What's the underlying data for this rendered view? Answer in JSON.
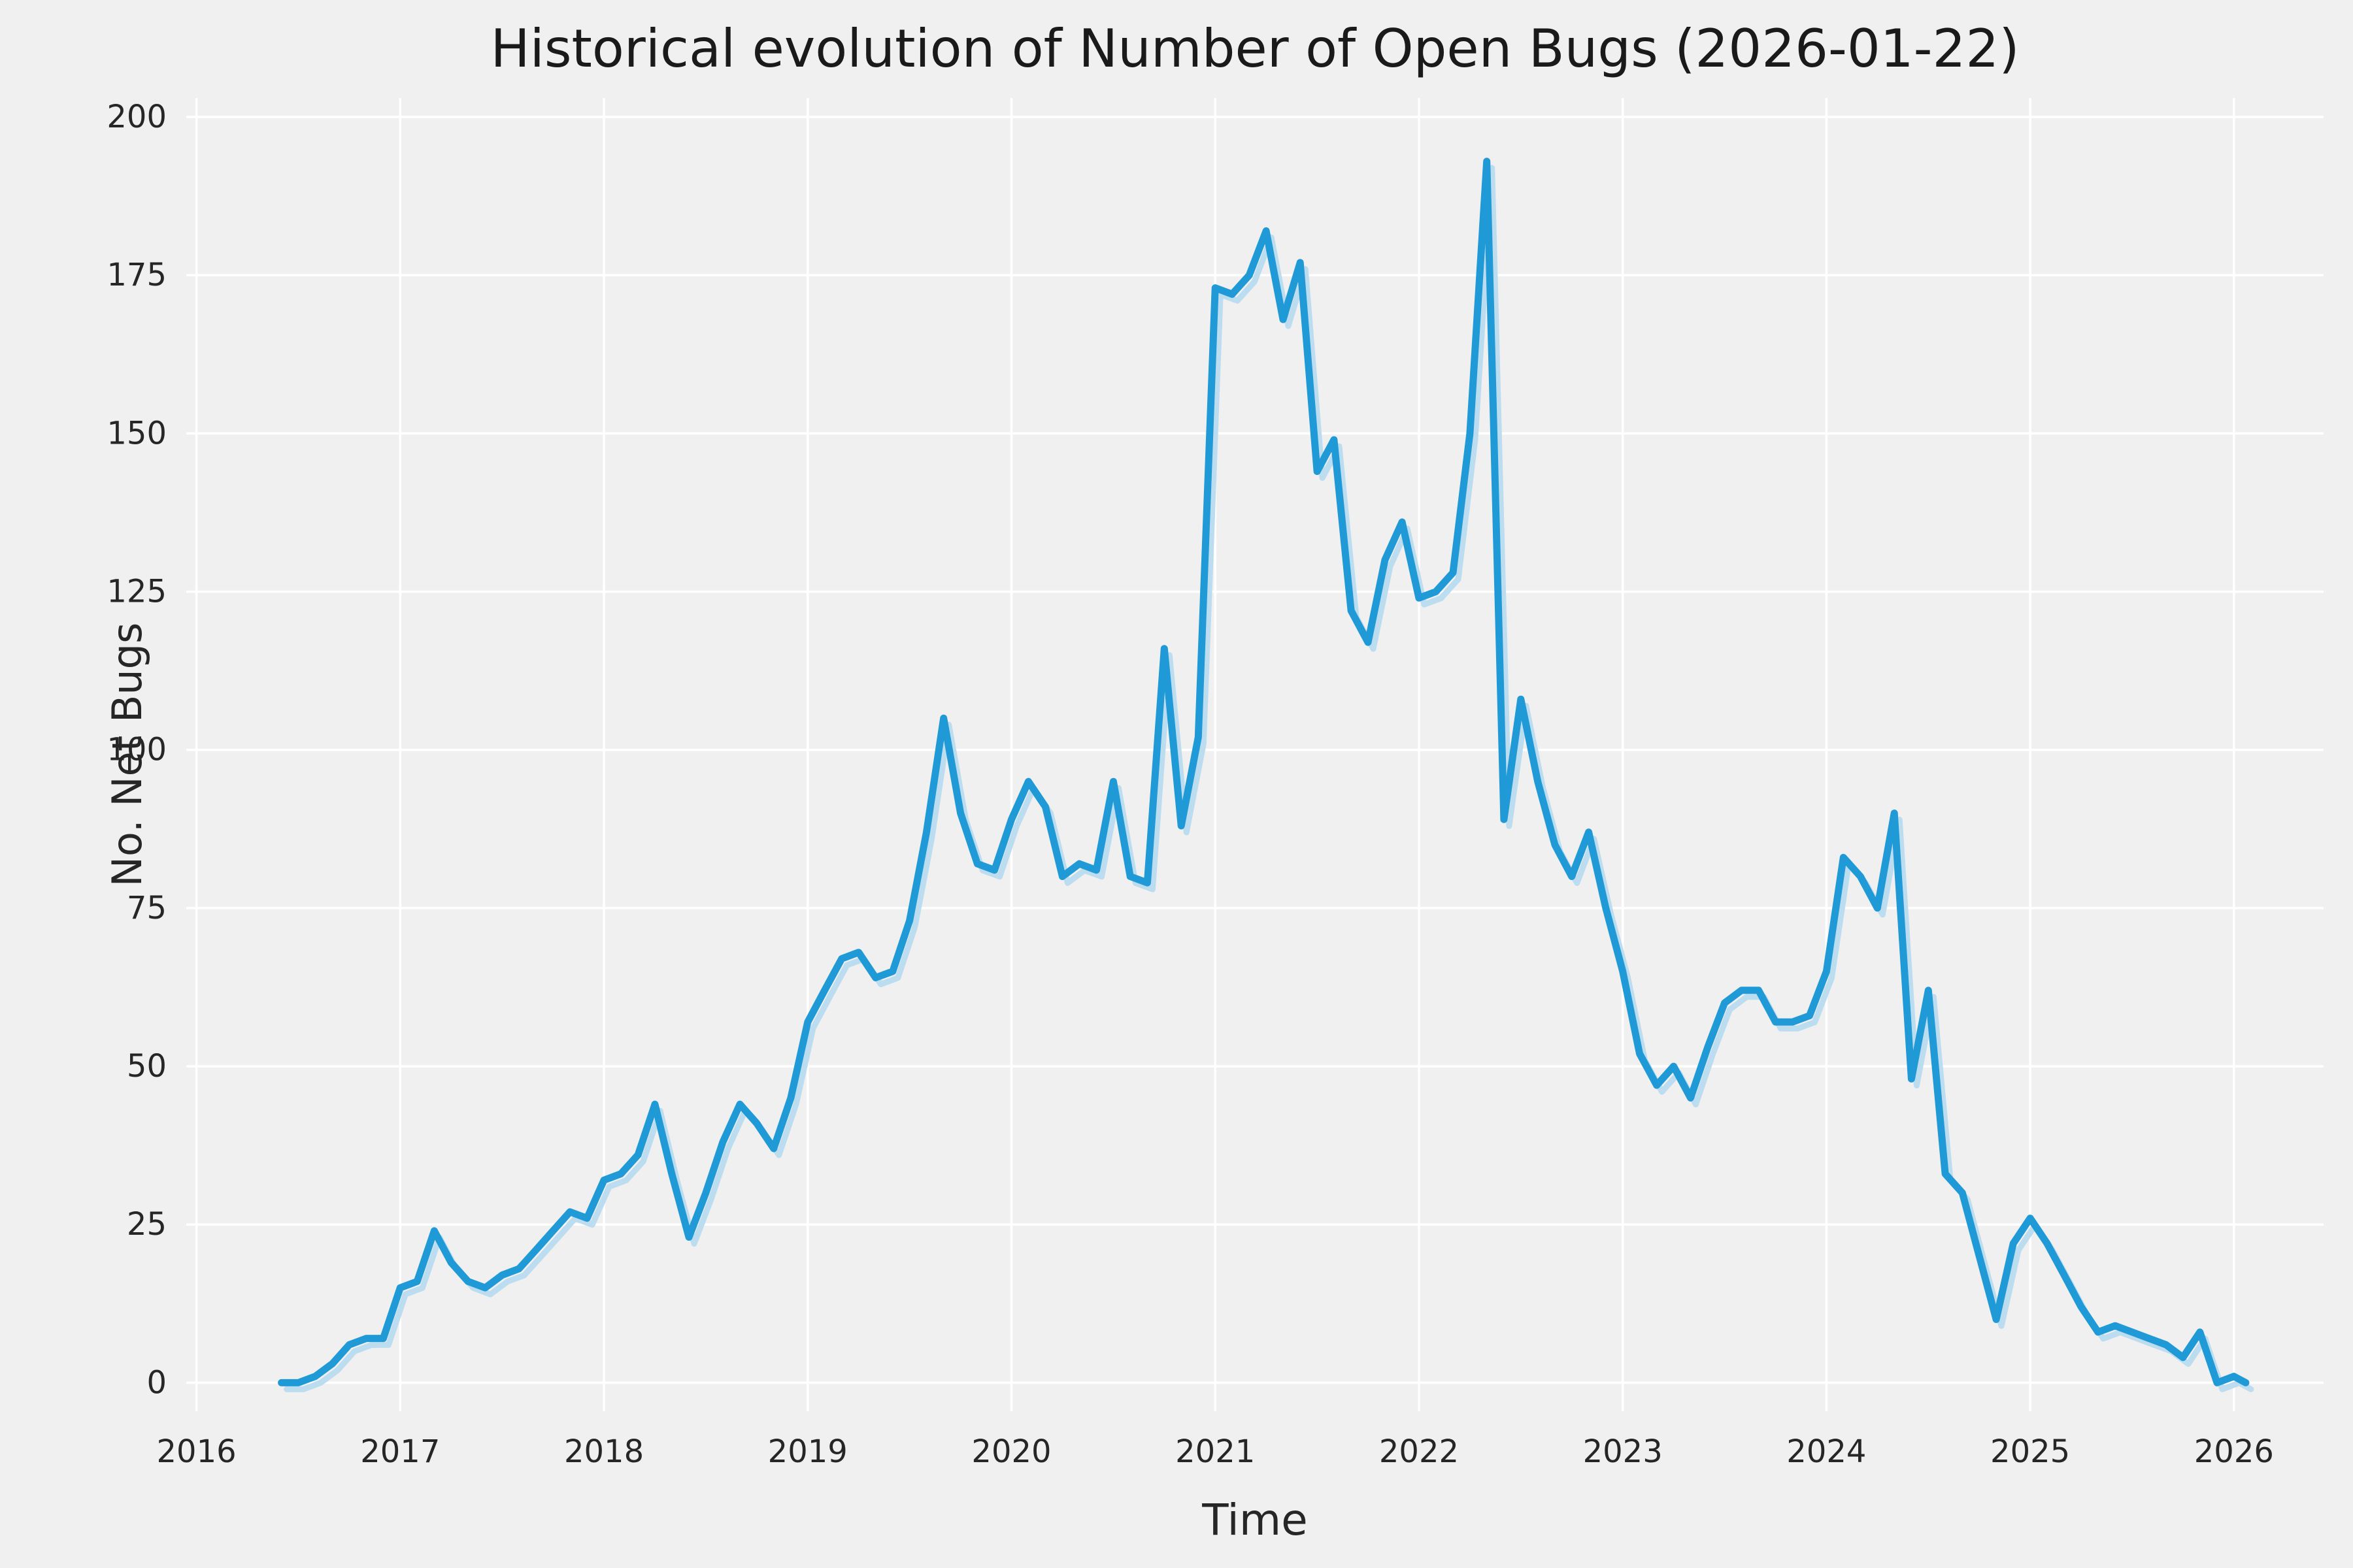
{
  "colors": {
    "background": "#f0f0f0",
    "grid": "#ffffff",
    "line": "#1f9ad6",
    "shadow_line": "#bcdcf0",
    "text": "#262626",
    "title": "#1a1a1a"
  },
  "chart_data": {
    "type": "line",
    "title": "Historical evolution of Number of Open Bugs (2026-01-22)",
    "xlabel": "Time",
    "ylabel": "No. Net Bugs",
    "xlim": [
      2015.95,
      2026.44
    ],
    "ylim": [
      -4.5,
      203
    ],
    "xticks": [
      2016,
      2017,
      2018,
      2019,
      2020,
      2021,
      2022,
      2023,
      2024,
      2025,
      2026
    ],
    "yticks": [
      0,
      25,
      50,
      75,
      100,
      125,
      150,
      175,
      200
    ],
    "grid": true,
    "legend": false,
    "series": [
      {
        "name": "open-bugs",
        "x": [
          2016.417,
          2016.5,
          2016.583,
          2016.667,
          2016.75,
          2016.833,
          2016.917,
          2017.0,
          2017.083,
          2017.167,
          2017.25,
          2017.333,
          2017.417,
          2017.5,
          2017.583,
          2017.667,
          2017.75,
          2017.833,
          2017.917,
          2018.0,
          2018.083,
          2018.167,
          2018.25,
          2018.333,
          2018.417,
          2018.5,
          2018.583,
          2018.667,
          2018.75,
          2018.833,
          2018.917,
          2019.0,
          2019.083,
          2019.167,
          2019.25,
          2019.333,
          2019.417,
          2019.5,
          2019.583,
          2019.667,
          2019.75,
          2019.833,
          2019.917,
          2020.0,
          2020.083,
          2020.167,
          2020.25,
          2020.333,
          2020.417,
          2020.5,
          2020.583,
          2020.667,
          2020.75,
          2020.833,
          2020.917,
          2021.0,
          2021.083,
          2021.167,
          2021.25,
          2021.333,
          2021.417,
          2021.5,
          2021.583,
          2021.667,
          2021.75,
          2021.833,
          2021.917,
          2022.0,
          2022.083,
          2022.167,
          2022.25,
          2022.333,
          2022.417,
          2022.5,
          2022.583,
          2022.667,
          2022.75,
          2022.833,
          2022.917,
          2023.0,
          2023.083,
          2023.167,
          2023.25,
          2023.333,
          2023.417,
          2023.5,
          2023.583,
          2023.667,
          2023.75,
          2023.833,
          2023.917,
          2024.0,
          2024.083,
          2024.167,
          2024.25,
          2024.333,
          2024.417,
          2024.5,
          2024.583,
          2024.667,
          2024.75,
          2024.833,
          2024.917,
          2025.0,
          2025.083,
          2025.167,
          2025.25,
          2025.333,
          2025.417,
          2025.5,
          2025.583,
          2025.667,
          2025.75,
          2025.833,
          2025.917,
          2026.0,
          2026.058
        ],
        "y": [
          0,
          0,
          1,
          3,
          6,
          7,
          7,
          15,
          16,
          24,
          19,
          16,
          15,
          17,
          18,
          21,
          24,
          27,
          26,
          32,
          33,
          36,
          44,
          33,
          23,
          30,
          38,
          44,
          41,
          37,
          45,
          57,
          62,
          67,
          68,
          64,
          65,
          73,
          87,
          105,
          90,
          82,
          81,
          89,
          95,
          91,
          80,
          82,
          81,
          95,
          80,
          79,
          116,
          88,
          102,
          173,
          172,
          175,
          182,
          168,
          177,
          144,
          149,
          122,
          117,
          130,
          136,
          124,
          125,
          128,
          150,
          193,
          89,
          108,
          95,
          85,
          80,
          87,
          75,
          65,
          52,
          47,
          50,
          45,
          53,
          60,
          62,
          62,
          57,
          57,
          58,
          65,
          83,
          80,
          75,
          90,
          48,
          62,
          33,
          30,
          20,
          10,
          22,
          26,
          22,
          17,
          12,
          8,
          9,
          8,
          7,
          6,
          4,
          8,
          0,
          1,
          0
        ]
      }
    ]
  }
}
